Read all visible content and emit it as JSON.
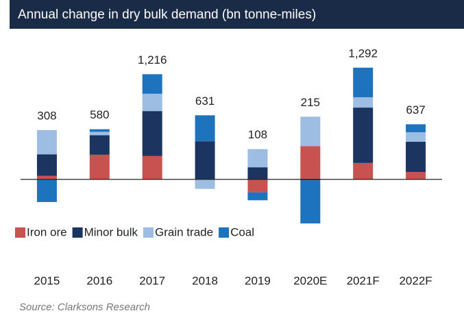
{
  "chart_data": {
    "type": "stacked_bar",
    "title": "Annual change in dry bulk demand (bn tonne-miles)",
    "source": "Source: Clarksons Research",
    "categories": [
      "2015",
      "2016",
      "2017",
      "2018",
      "2019",
      "2020E",
      "2021F",
      "2022F"
    ],
    "series": [
      {
        "name": "Iron ore",
        "color": "#c8524f",
        "values": [
          40,
          285,
          270,
          0,
          -150,
          385,
          190,
          85
        ]
      },
      {
        "name": "Minor bulk",
        "color": "#1b3560",
        "values": [
          250,
          225,
          520,
          441,
          140,
          -10,
          640,
          350
        ]
      },
      {
        "name": "Grain trade",
        "color": "#9dbde3",
        "values": [
          280,
          40,
          200,
          -110,
          210,
          340,
          120,
          110
        ]
      },
      {
        "name": "Coal",
        "color": "#1e73be",
        "values": [
          -262,
          30,
          226,
          300,
          -92,
          -500,
          342,
          92
        ]
      }
    ],
    "totals": [
      308,
      580,
      1216,
      631,
      108,
      215,
      1292,
      637
    ],
    "value_labels": [
      "308",
      "580",
      "1,216",
      "631",
      "108",
      "215",
      "1,292",
      "637"
    ],
    "ylim": [
      -540,
      1520
    ]
  }
}
